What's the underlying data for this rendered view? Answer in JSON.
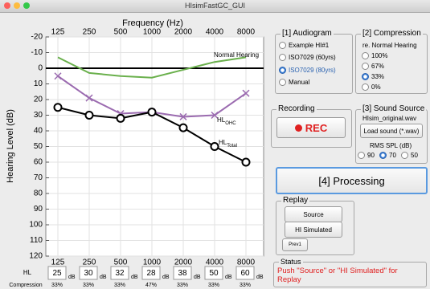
{
  "window": {
    "title": "HIsimFastGC_GUI"
  },
  "chart_data": {
    "type": "line",
    "x_label": "Frequency (Hz)",
    "y_label": "Hearing Level (dB)",
    "categories": [
      125,
      250,
      500,
      1000,
      2000,
      4000,
      8000
    ],
    "ylim": [
      -20,
      120
    ],
    "y_inverted": true,
    "yticks": [
      -20,
      -10,
      0,
      10,
      20,
      30,
      40,
      50,
      60,
      70,
      80,
      90,
      100,
      110,
      120
    ],
    "grid": true,
    "reference_line": 0,
    "series": [
      {
        "name": "Normal Hearing",
        "color": "#6ab04c",
        "marker": "none",
        "values": [
          -7,
          3,
          5,
          6,
          1,
          -4,
          -7
        ]
      },
      {
        "name": "HL",
        "name_sub": "OHC",
        "color": "#9b6bb0",
        "marker": "x",
        "values": [
          5,
          19,
          29,
          28,
          31,
          30,
          16
        ]
      },
      {
        "name": "HL",
        "name_sub": "Total",
        "color": "#000000",
        "marker": "circle",
        "values": [
          25,
          30,
          32,
          28,
          38,
          50,
          60
        ]
      }
    ]
  },
  "table": {
    "hl_label": "HL",
    "unit": "dB",
    "compression_label": "Compression",
    "compression": [
      "33%",
      "33%",
      "33%",
      "47%",
      "33%",
      "33%",
      "33%"
    ]
  },
  "audiogram": {
    "title": "[1] Audiogram",
    "options": [
      "Example HI#1",
      "ISO7029 (60yrs)",
      "ISO7029 (80yrs)",
      "Manual"
    ],
    "selected": 2
  },
  "compression": {
    "title": "[2] Compression",
    "subtitle": "re. Normal Hearing",
    "options": [
      "100%",
      "67%",
      "33%",
      "0%"
    ],
    "selected": 2
  },
  "recording": {
    "title": "Recording",
    "button": "REC"
  },
  "sound_source": {
    "title": "[3] Sound Source",
    "file": "HIsim_original.wav",
    "button": "Load sound (*.wav)",
    "rms_label": "RMS SPL (dB)",
    "options": [
      "90",
      "70",
      "50"
    ],
    "selected": 1
  },
  "processing": {
    "button": "[4] Processing"
  },
  "replay": {
    "title": "Replay",
    "buttons": [
      "Source",
      "HI Simulated",
      "Prev1"
    ]
  },
  "status": {
    "title": "Status",
    "message": "Push \"Source\" or \"HI Simulated\" for Replay"
  }
}
